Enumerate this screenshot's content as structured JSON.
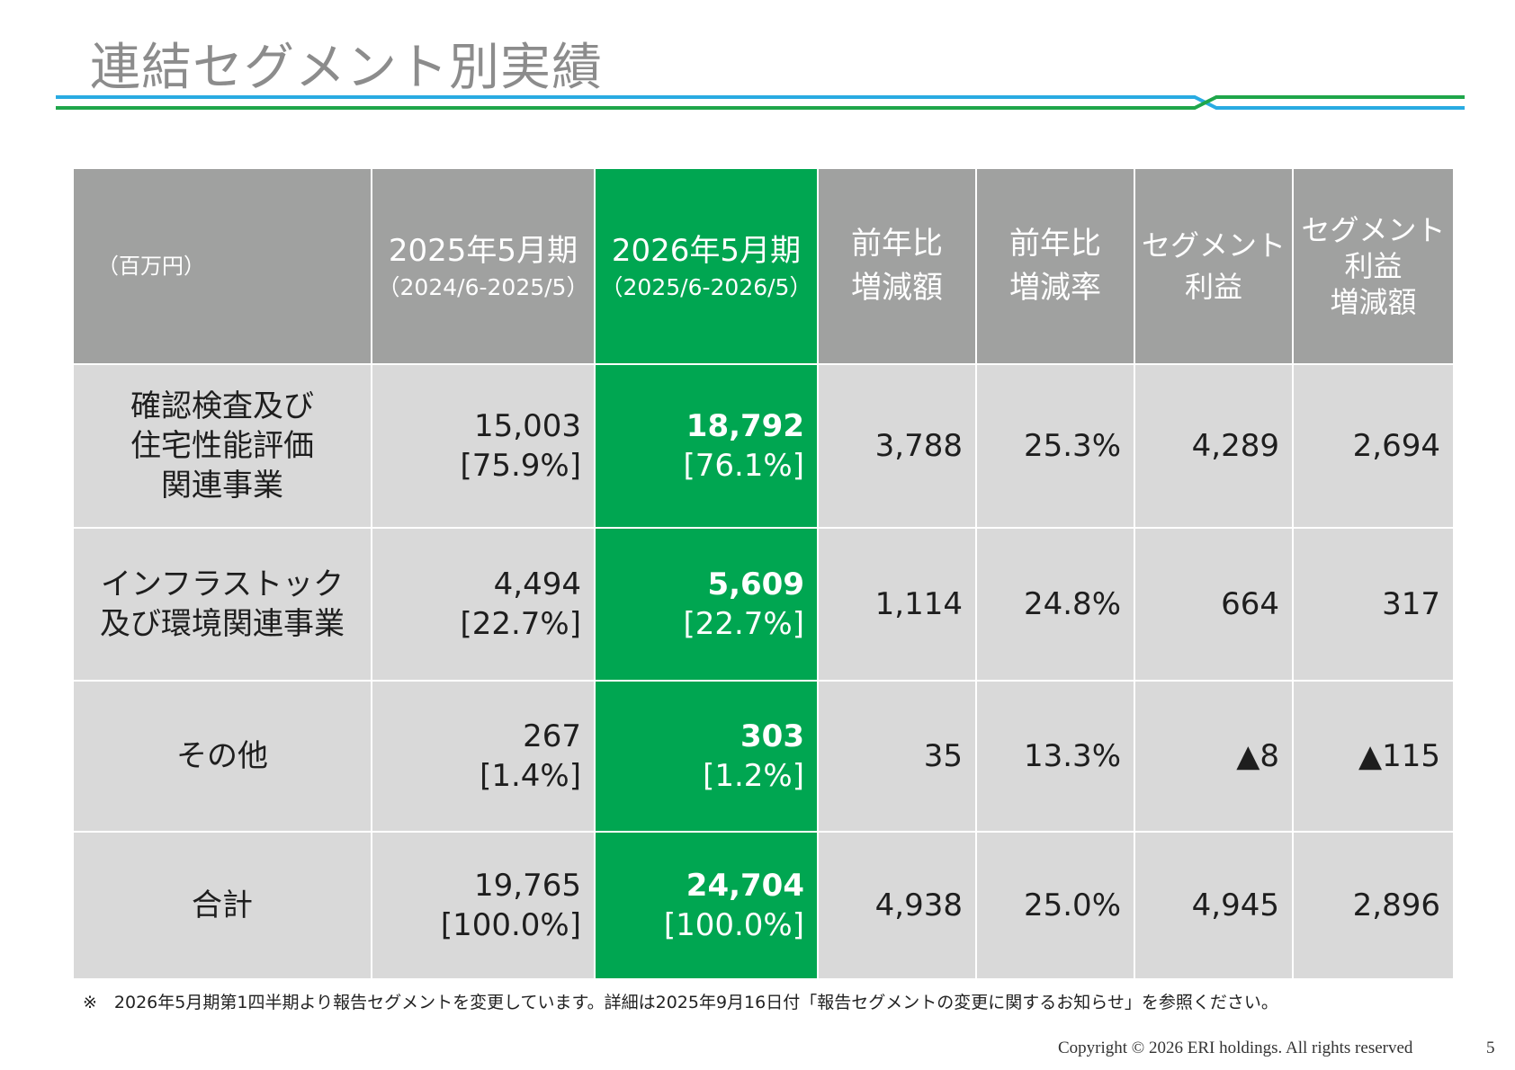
{
  "page": {
    "title": "連結セグメント別実績",
    "footnote": "※　2026年5月期第1四半期より報告セグメントを変更しています。詳細は2025年9月16日付「報告セグメントの変更に関するお知らせ」を参照ください。",
    "copyright": "Copyright © 2026 ERI holdings. All rights reserved",
    "page_number": "5"
  },
  "colors": {
    "header_gray": "#a0a1a0",
    "highlight_green": "#00a651",
    "row_gray": "#d9d9d9",
    "title_gray": "#8c8c8c",
    "rule_blue": "#29abe2",
    "rule_green": "#1fa64a"
  },
  "table": {
    "header": {
      "unit": "（百万円）",
      "fy2025": {
        "title": "2025年5月期",
        "period": "（2024/6-2025/5）"
      },
      "fy2026": {
        "title": "2026年5月期",
        "period": "（2025/6-2026/5）"
      },
      "yoy_amount": {
        "line1": "前年比",
        "line2": "増減額"
      },
      "yoy_rate": {
        "line1": "前年比",
        "line2": "増減率"
      },
      "seg_profit": {
        "line1": "セグメント",
        "line2": "利益"
      },
      "seg_profit_change": {
        "line1": "セグメント",
        "line2": "利益",
        "line3": "増減額"
      }
    },
    "rows": [
      {
        "label_lines": [
          "確認検査及び",
          "住宅性能評価",
          "関連事業"
        ],
        "fy2025_value": "15,003",
        "fy2025_share": "[75.9%]",
        "fy2026_value": "18,792",
        "fy2026_share": "[76.1%]",
        "yoy_amount": "3,788",
        "yoy_rate": "25.3%",
        "seg_profit": "4,289",
        "seg_profit_change": "2,694"
      },
      {
        "label_lines": [
          "インフラストック",
          "及び環境関連事業"
        ],
        "fy2025_value": "4,494",
        "fy2025_share": "[22.7%]",
        "fy2026_value": "5,609",
        "fy2026_share": "[22.7%]",
        "yoy_amount": "1,114",
        "yoy_rate": "24.8%",
        "seg_profit": "664",
        "seg_profit_change": "317"
      },
      {
        "label_lines": [
          "その他"
        ],
        "fy2025_value": "267",
        "fy2025_share": "[1.4%]",
        "fy2026_value": "303",
        "fy2026_share": "[1.2%]",
        "yoy_amount": "35",
        "yoy_rate": "13.3%",
        "seg_profit": "▲8",
        "seg_profit_change": "▲115"
      },
      {
        "label_lines": [
          "合計"
        ],
        "fy2025_value": "19,765",
        "fy2025_share": "[100.0%]",
        "fy2026_value": "24,704",
        "fy2026_share": "[100.0%]",
        "yoy_amount": "4,938",
        "yoy_rate": "25.0%",
        "seg_profit": "4,945",
        "seg_profit_change": "2,896"
      }
    ]
  }
}
